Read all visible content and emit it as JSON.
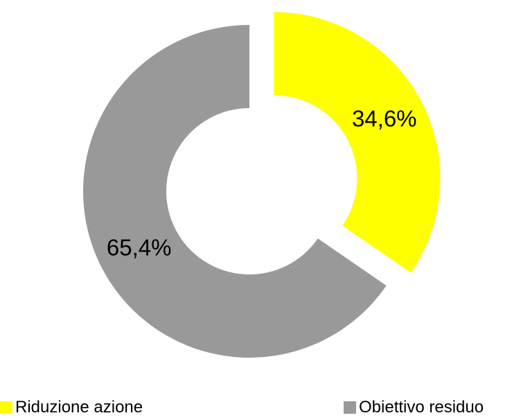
{
  "chart_data": {
    "type": "pie",
    "variant": "donut",
    "slices": [
      {
        "name": "Riduzione azione",
        "value": 34.6,
        "label": "34,6%",
        "color": "#FFFF00",
        "exploded": true
      },
      {
        "name": "Obiettivo residuo",
        "value": 65.4,
        "label": "65,4%",
        "color": "#999999",
        "exploded": false
      }
    ],
    "legend_position": "bottom",
    "title": ""
  },
  "legend": {
    "items": [
      {
        "label": "Riduzione azione",
        "color": "#FFFF00"
      },
      {
        "label": "Obiettivo residuo",
        "color": "#999999"
      }
    ]
  }
}
